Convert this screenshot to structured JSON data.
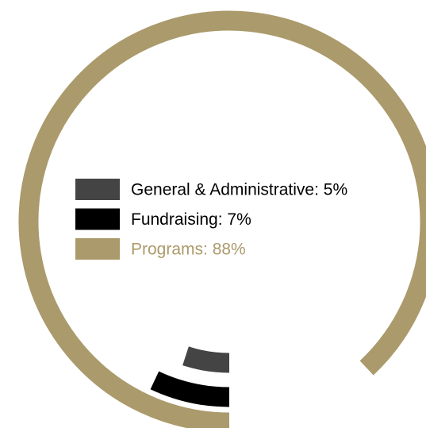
{
  "chart_data": {
    "type": "radial-bar",
    "categories": [
      "General & Administrative: 5%",
      "Fundraising: 7%",
      "Programs: 88%"
    ],
    "values": [
      5,
      7,
      88
    ],
    "colors": [
      "#444444",
      "#000000",
      "#ab9a6b"
    ]
  }
}
